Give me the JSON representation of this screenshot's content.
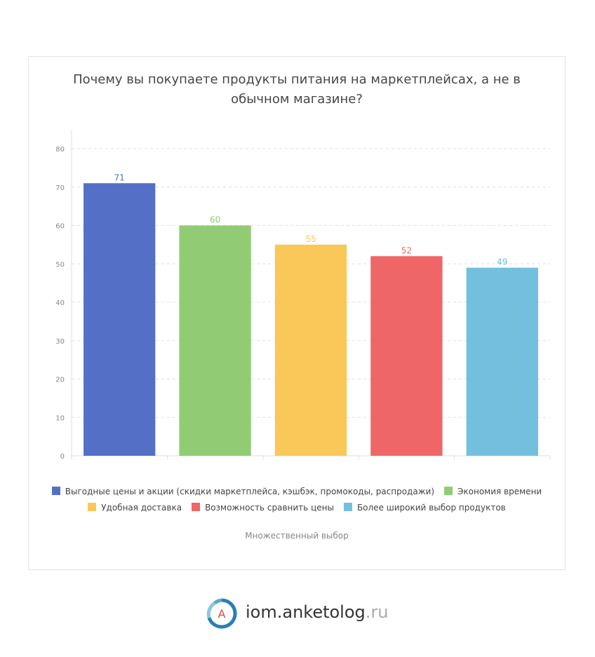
{
  "chart_data": {
    "type": "bar",
    "title": "Почему вы покупаете продукты питания на маркетплейсах, а не в обычном магазине?",
    "categories": [
      "Выгодные цены и акции (скидки маркетплейса, кэшбэк, промокоды, распродажи)",
      "Экономия времени",
      "Удобная доставка",
      "Возможность сравнить цены",
      "Более широкий выбор продуктов"
    ],
    "values": [
      71,
      60,
      55,
      52,
      49
    ],
    "colors": [
      "#5470c6",
      "#91cc75",
      "#fac858",
      "#ee6666",
      "#73c0de"
    ],
    "ylim": [
      0,
      80
    ],
    "yticks": [
      0,
      10,
      20,
      30,
      40,
      50,
      60,
      70,
      80
    ],
    "grid": true,
    "legend_position": "bottom"
  },
  "note": "Множественный выбор",
  "brand": {
    "name": "iom.anketolog",
    "tld": ".ru",
    "logo_letter": "A",
    "logo_icon": "anketolog-logo-icon"
  }
}
